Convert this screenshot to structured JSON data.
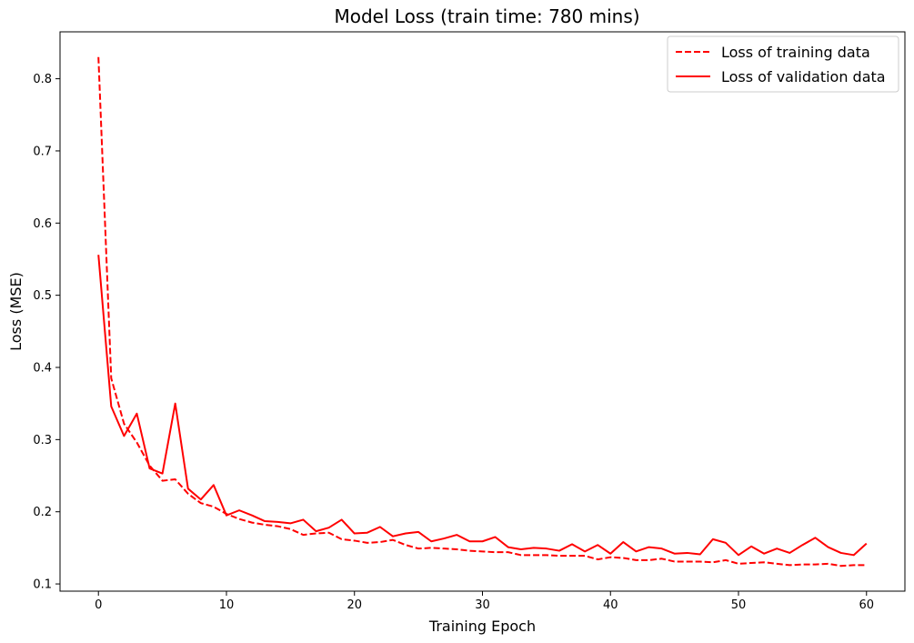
{
  "chart_data": {
    "type": "line",
    "title": "Model Loss (train time: 780 mins)",
    "xlabel": "Training Epoch",
    "ylabel": "Loss (MSE)",
    "xlim": [
      -3,
      63
    ],
    "ylim": [
      0.09,
      0.865
    ],
    "xticks": [
      0,
      10,
      20,
      30,
      40,
      50,
      60
    ],
    "yticks": [
      0.1,
      0.2,
      0.3,
      0.4,
      0.5,
      0.6,
      0.7,
      0.8
    ],
    "grid": false,
    "legend_position": "top-right",
    "x": [
      0,
      1,
      2,
      3,
      4,
      5,
      6,
      7,
      8,
      9,
      10,
      11,
      12,
      13,
      14,
      15,
      16,
      17,
      18,
      19,
      20,
      21,
      22,
      23,
      24,
      25,
      26,
      27,
      28,
      29,
      30,
      31,
      32,
      33,
      34,
      35,
      36,
      37,
      38,
      39,
      40,
      41,
      42,
      43,
      44,
      45,
      46,
      47,
      48,
      49,
      50,
      51,
      52,
      53,
      54,
      55,
      56,
      57,
      58,
      59,
      60
    ],
    "series": [
      {
        "name": "Loss of training data",
        "color": "#ff0000",
        "dash": "dashed",
        "values": [
          0.83,
          0.385,
          0.322,
          0.296,
          0.264,
          0.243,
          0.245,
          0.225,
          0.212,
          0.207,
          0.197,
          0.19,
          0.185,
          0.182,
          0.18,
          0.176,
          0.168,
          0.17,
          0.171,
          0.162,
          0.16,
          0.157,
          0.158,
          0.161,
          0.154,
          0.149,
          0.15,
          0.149,
          0.148,
          0.146,
          0.145,
          0.144,
          0.144,
          0.14,
          0.14,
          0.14,
          0.139,
          0.139,
          0.139,
          0.134,
          0.137,
          0.136,
          0.133,
          0.133,
          0.135,
          0.131,
          0.131,
          0.131,
          0.13,
          0.133,
          0.128,
          0.129,
          0.13,
          0.128,
          0.126,
          0.127,
          0.127,
          0.128,
          0.125,
          0.126,
          0.126
        ]
      },
      {
        "name": "Loss of validation data",
        "color": "#ff0000",
        "dash": "solid",
        "values": [
          0.556,
          0.346,
          0.305,
          0.336,
          0.26,
          0.253,
          0.35,
          0.232,
          0.217,
          0.237,
          0.195,
          0.202,
          0.195,
          0.187,
          0.186,
          0.184,
          0.189,
          0.173,
          0.178,
          0.189,
          0.17,
          0.171,
          0.179,
          0.166,
          0.17,
          0.172,
          0.159,
          0.163,
          0.168,
          0.159,
          0.159,
          0.165,
          0.151,
          0.148,
          0.15,
          0.149,
          0.146,
          0.155,
          0.145,
          0.154,
          0.142,
          0.158,
          0.145,
          0.151,
          0.149,
          0.142,
          0.143,
          0.141,
          0.162,
          0.157,
          0.14,
          0.152,
          0.142,
          0.149,
          0.143,
          0.154,
          0.164,
          0.151,
          0.143,
          0.14,
          0.156
        ]
      }
    ]
  }
}
